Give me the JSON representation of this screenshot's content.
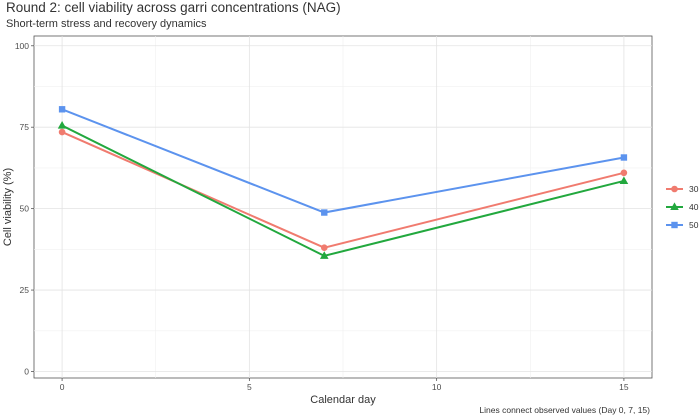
{
  "chart_data": {
    "type": "line",
    "title": "Round 2: cell viability across garri concentrations (NAG)",
    "subtitle": "Short-term stress and recovery dynamics",
    "caption": "Lines connect observed values (Day 0, 7, 15)",
    "xlabel": "Calendar day",
    "ylabel": "Cell viability (%)",
    "xlim": [
      -0.75,
      15.75
    ],
    "ylim": [
      -2,
      103
    ],
    "x_ticks": [
      0,
      5,
      10,
      15
    ],
    "y_ticks": [
      0,
      25,
      50,
      75,
      100
    ],
    "grid": true,
    "legend_position": "right",
    "x": [
      0,
      7,
      15
    ],
    "series": [
      {
        "name": "30",
        "values": [
          73.5,
          38,
          61
        ],
        "color": "#f07b6f",
        "marker": "circle"
      },
      {
        "name": "40",
        "values": [
          75.5,
          35.5,
          58.5
        ],
        "color": "#22a83e",
        "marker": "triangle"
      },
      {
        "name": "50",
        "values": [
          80.5,
          48.8,
          65.7
        ],
        "color": "#5c93ee",
        "marker": "square"
      }
    ]
  }
}
